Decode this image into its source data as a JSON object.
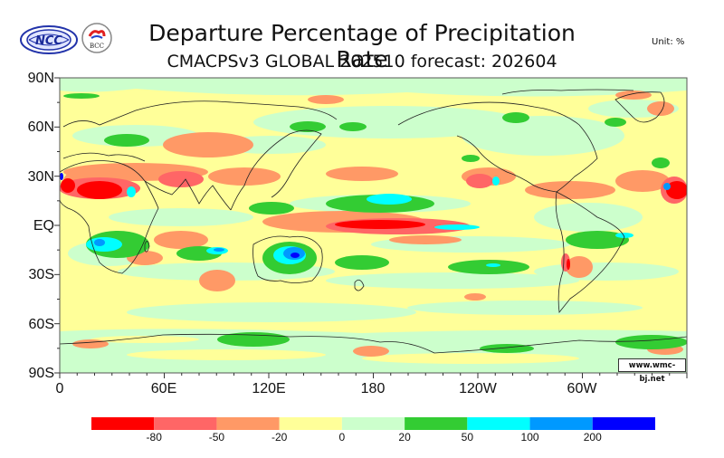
{
  "header": {
    "title": "Departure Percentage of Precipitation Rate",
    "subtitle": "CMACPSv3 GLOBAL 202510 forecast: 202604",
    "unit": "Unit: %"
  },
  "logos": [
    {
      "name": "NCC",
      "text": "NCC"
    },
    {
      "name": "BCC",
      "text": "BCC"
    }
  ],
  "map": {
    "y_axis_labels": [
      "90N",
      "60N",
      "30N",
      "EQ",
      "30S",
      "60S",
      "90S"
    ],
    "x_axis_labels": [
      "0",
      "60E",
      "120E",
      "180",
      "120W",
      "60W"
    ],
    "credit": "www.wmc-bj.net"
  },
  "colorbar": {
    "colors": [
      "#ff0000",
      "#ff6666",
      "#ff9966",
      "#ffff99",
      "#ccffcc",
      "#33cc33",
      "#00ffff",
      "#0099ff",
      "#0000ff"
    ],
    "labels": [
      "-80",
      "-50",
      "-20",
      "0",
      "20",
      "50",
      "100",
      "200"
    ]
  }
}
